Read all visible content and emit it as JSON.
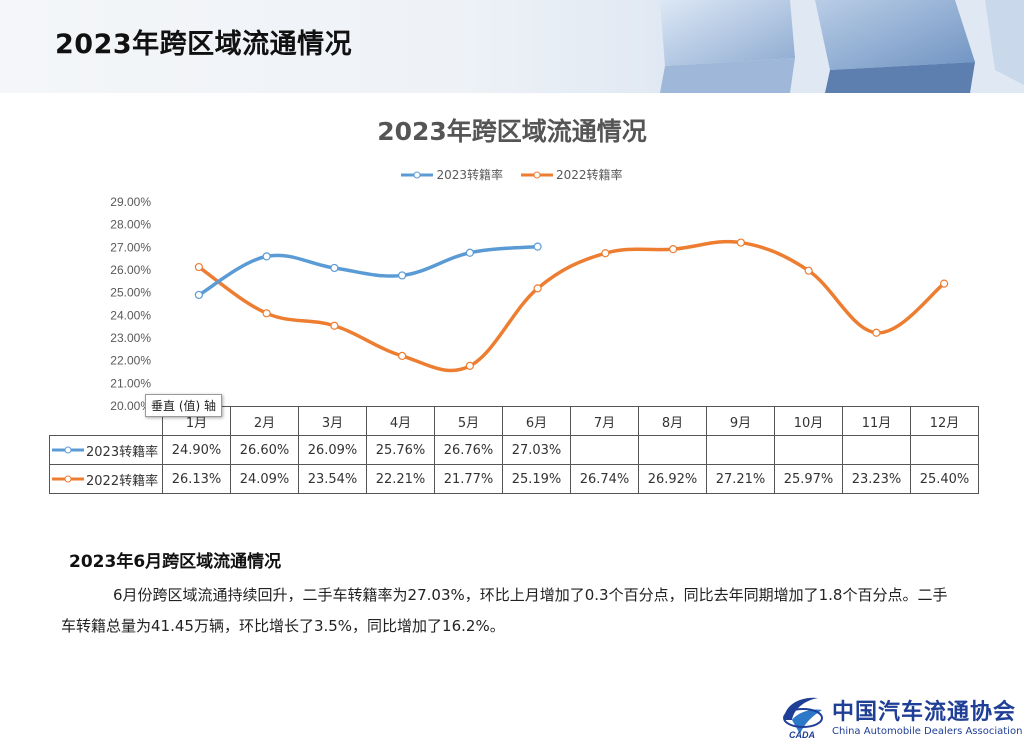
{
  "header": {
    "title": "2023年跨区域流通情况"
  },
  "chart_data": {
    "type": "line",
    "title": "2023年跨区域流通情况",
    "categories": [
      "1月",
      "2月",
      "3月",
      "4月",
      "5月",
      "6月",
      "7月",
      "8月",
      "9月",
      "10月",
      "11月",
      "12月"
    ],
    "series": [
      {
        "name": "2023转籍率",
        "color": "#5b9bd5",
        "values": [
          24.9,
          26.6,
          26.09,
          25.76,
          26.76,
          27.03,
          null,
          null,
          null,
          null,
          null,
          null
        ]
      },
      {
        "name": "2022转籍率",
        "color": "#ed7d31",
        "values": [
          26.13,
          24.09,
          23.54,
          22.21,
          21.77,
          25.19,
          26.74,
          26.92,
          27.21,
          25.97,
          23.23,
          25.4
        ]
      }
    ],
    "ylim": [
      20,
      29
    ],
    "yticks": [
      "20.00%",
      "21.00%",
      "22.00%",
      "23.00%",
      "24.00%",
      "25.00%",
      "26.00%",
      "27.00%",
      "28.00%",
      "29.00%"
    ],
    "legend_position": "top",
    "data_table": true,
    "smooth": true
  },
  "table": {
    "rows": [
      {
        "label": "2023转籍率",
        "cells": [
          "24.90%",
          "26.60%",
          "26.09%",
          "25.76%",
          "26.76%",
          "27.03%",
          "",
          "",
          "",
          "",
          "",
          ""
        ]
      },
      {
        "label": "2022转籍率",
        "cells": [
          "26.13%",
          "24.09%",
          "23.54%",
          "22.21%",
          "21.77%",
          "25.19%",
          "26.74%",
          "26.92%",
          "27.21%",
          "25.97%",
          "23.23%",
          "25.40%"
        ]
      }
    ]
  },
  "tooltip": {
    "text": "垂直 (值) 轴"
  },
  "section": {
    "title": "2023年6月跨区域流通情况",
    "paragraph": "6月份跨区域流通持续回升，二手车转籍率为27.03%，环比上月增加了0.3个百分点，同比去年同期增加了1.8个百分点。二手车转籍总量为41.45万辆，环比增长了3.5%，同比增加了16.2%。"
  },
  "logo": {
    "name_cn": "中国汽车流通协会",
    "name_en": "China Automobile Dealers Association",
    "mark_text": "CADA"
  }
}
